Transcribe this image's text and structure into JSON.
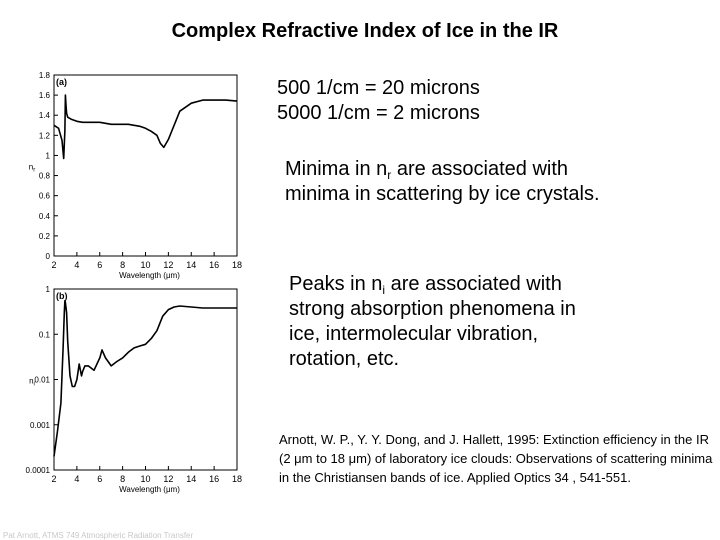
{
  "title": "Complex Refractive Index of Ice in the IR",
  "conversions": [
    "500 1/cm = 20 microns",
    "5000 1/cm = 2 microns"
  ],
  "note_minima": {
    "pre": "Minima in n",
    "sub": "r",
    "post": " are associated with minima in scattering by ice crystals."
  },
  "note_peaks": {
    "pre": "Peaks in n",
    "sub": "i",
    "post": " are associated with strong absorption phenomena in ice, intermolecular vibration, rotation, etc."
  },
  "citation": "Arnott, W. P., Y. Y. Dong, and J. Hallett, 1995:   Extinction efficiency in the IR (2 μm to 18 μm) of laboratory ice clouds:   Observations of scattering minima in the Christiansen bands of ice.   Applied Optics 34 , 541-551.",
  "footer": "Pat Arnott, ATMS 749 Atmospheric Radiation Transfer",
  "chart_data": [
    {
      "type": "line",
      "panel_label": "(a)",
      "xlabel": "Wavelength (μm)",
      "ylabel": "n",
      "ylabel_sub": "r",
      "xlim": [
        2,
        18
      ],
      "ylim": [
        0,
        1.8
      ],
      "xticks": [
        2,
        4,
        6,
        8,
        10,
        12,
        14,
        16,
        18
      ],
      "yticks": [
        0,
        0.2,
        0.4,
        0.6,
        0.8,
        1,
        1.2,
        1.4,
        1.6,
        1.8
      ],
      "ytick_labels": [
        "0",
        "0.2",
        "0.4",
        "0.6",
        "0.8",
        "1",
        "1.2",
        "1.4",
        "1.6",
        "1.8"
      ],
      "x": [
        2.0,
        2.4,
        2.7,
        2.85,
        2.95,
        3.0,
        3.05,
        3.1,
        3.2,
        3.5,
        4.0,
        4.5,
        5.0,
        5.5,
        6.0,
        6.5,
        7.0,
        7.5,
        8.0,
        8.5,
        9.0,
        9.5,
        10.0,
        10.5,
        11.0,
        11.3,
        11.6,
        12.0,
        12.5,
        13.0,
        14.0,
        15.0,
        16.0,
        17.0,
        18.0
      ],
      "y": [
        1.3,
        1.27,
        1.15,
        0.97,
        1.25,
        1.6,
        1.5,
        1.42,
        1.38,
        1.36,
        1.34,
        1.33,
        1.33,
        1.33,
        1.33,
        1.32,
        1.31,
        1.31,
        1.31,
        1.31,
        1.3,
        1.29,
        1.27,
        1.24,
        1.2,
        1.12,
        1.08,
        1.16,
        1.3,
        1.44,
        1.52,
        1.55,
        1.55,
        1.55,
        1.54
      ]
    },
    {
      "type": "line",
      "panel_label": "(b)",
      "xlabel": "Wavelength (μm)",
      "ylabel": "n",
      "ylabel_sub": "i",
      "scale": "log",
      "xlim": [
        2,
        18
      ],
      "ylim": [
        0.0001,
        1
      ],
      "xticks": [
        2,
        4,
        6,
        8,
        10,
        12,
        14,
        16,
        18
      ],
      "yticks": [
        0.0001,
        0.001,
        0.01,
        0.1,
        1
      ],
      "ytick_labels": [
        "0.0001",
        "0.001",
        "0.01",
        "0.1",
        "1"
      ],
      "x": [
        2.0,
        2.3,
        2.6,
        2.8,
        2.9,
        2.95,
        3.0,
        3.1,
        3.2,
        3.4,
        3.6,
        3.8,
        4.0,
        4.2,
        4.4,
        4.5,
        4.7,
        5.0,
        5.5,
        6.0,
        6.2,
        6.5,
        7.0,
        7.5,
        8.0,
        8.5,
        9.0,
        9.5,
        10.0,
        10.5,
        11.0,
        11.5,
        12.0,
        12.5,
        13.0,
        14.0,
        15.0,
        16.0,
        17.0,
        18.0
      ],
      "y": [
        0.0002,
        0.0007,
        0.003,
        0.05,
        0.3,
        0.55,
        0.5,
        0.3,
        0.07,
        0.012,
        0.007,
        0.007,
        0.01,
        0.022,
        0.012,
        0.015,
        0.02,
        0.02,
        0.016,
        0.03,
        0.045,
        0.03,
        0.02,
        0.025,
        0.03,
        0.04,
        0.05,
        0.055,
        0.06,
        0.08,
        0.12,
        0.25,
        0.35,
        0.4,
        0.42,
        0.4,
        0.38,
        0.38,
        0.38,
        0.38
      ]
    }
  ]
}
